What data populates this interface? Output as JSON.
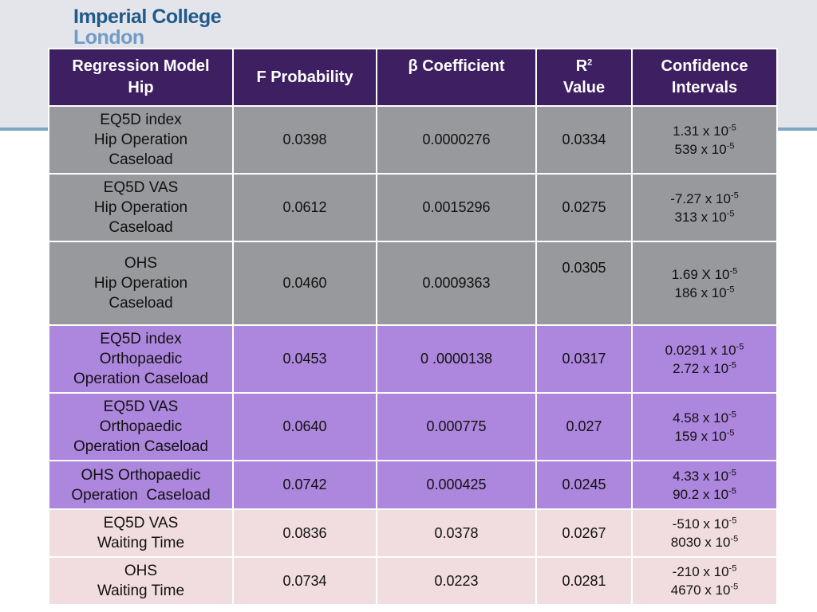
{
  "logo": {
    "line1": "Imperial College",
    "line2": "London"
  },
  "table": {
    "headers": {
      "model_l1": "Regression Model",
      "model_l2": "Hip",
      "f_prob": "F Probability",
      "beta_symbol": "β",
      "beta_text": " Coefficient",
      "r_label": "R",
      "r_sup": "2",
      "r_value": "Value",
      "ci_l1": "Confidence",
      "ci_l2": "Intervals"
    },
    "rows": [
      {
        "model": [
          "EQ5D index",
          "Hip Operation",
          "Caseload"
        ],
        "f": "0.0398",
        "beta": "0.0000276",
        "r2": "0.0334",
        "ci": [
          {
            "base": "1.31 x 10",
            "exp": "-5"
          },
          {
            "base": "539 x 10",
            "exp": "-5"
          }
        ]
      },
      {
        "model": [
          "EQ5D VAS",
          "Hip Operation",
          "Caseload"
        ],
        "f": "0.0612",
        "beta": "0.0015296",
        "r2": "0.0275",
        "ci": [
          {
            "base": "-7.27 x 10",
            "exp": "-5"
          },
          {
            "base": "313 x 10",
            "exp": "-5"
          }
        ]
      },
      {
        "model": [
          "OHS",
          "Hip Operation",
          "Caseload"
        ],
        "f": "0.0460",
        "beta": "0.0009363",
        "r2": "0.0305",
        "ci": [
          {
            "base": "1.69 X 10",
            "exp": "-5"
          },
          {
            "base": "186 x 10",
            "exp": "-5"
          }
        ]
      },
      {
        "model": [
          "EQ5D index",
          "Orthopaedic",
          "Operation Caseload"
        ],
        "f": "0.0453",
        "beta": "0 .0000138",
        "r2": "0.0317",
        "ci": [
          {
            "base": "0.0291 x 10",
            "exp": "-5"
          },
          {
            "base": "2.72 x 10",
            "exp": "-5"
          }
        ]
      },
      {
        "model": [
          "EQ5D VAS",
          "Orthopaedic",
          "Operation Caseload"
        ],
        "f": "0.0640",
        "beta": "0.000775",
        "r2": "0.027",
        "ci": [
          {
            "base": "4.58 x 10",
            "exp": "-5"
          },
          {
            "base": "159 x 10",
            "exp": "-5"
          }
        ]
      },
      {
        "model": [
          "OHS Orthopaedic",
          "Operation  Caseload"
        ],
        "f": "0.0742",
        "beta": "0.000425",
        "r2": "0.0245",
        "ci": [
          {
            "base": "4.33 x 10",
            "exp": "-5"
          },
          {
            "base": "90.2 x 10",
            "exp": "-5"
          }
        ]
      },
      {
        "model": [
          "EQ5D VAS",
          "Waiting Time"
        ],
        "f": "0.0836",
        "beta": "0.0378",
        "r2": "0.0267",
        "ci": [
          {
            "base": "-510 x 10",
            "exp": "-5"
          },
          {
            "base": "8030 x 10",
            "exp": "-5"
          }
        ]
      },
      {
        "model": [
          "OHS",
          "Waiting Time"
        ],
        "f": "0.0734",
        "beta": "0.0223",
        "r2": "0.0281",
        "ci": [
          {
            "base": "-210 x 10",
            "exp": "-5"
          },
          {
            "base": "4670 x 10",
            "exp": "-5"
          }
        ]
      }
    ]
  }
}
